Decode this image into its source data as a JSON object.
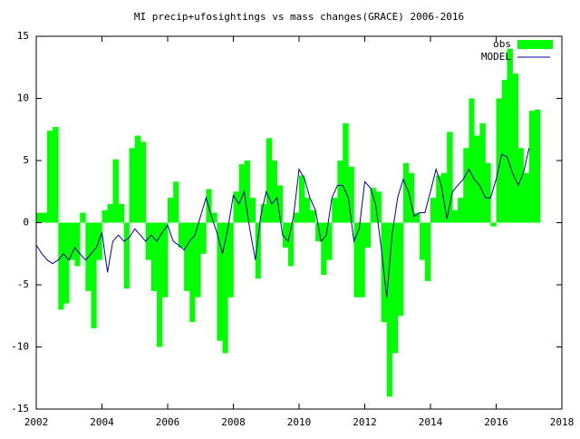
{
  "chart_data": {
    "type": "bar_line",
    "title": "MI precip+ufosightings vs mass changes(GRACE) 2006-2016",
    "x": [
      2002.0,
      2002.17,
      2002.33,
      2002.5,
      2002.67,
      2002.83,
      2003.0,
      2003.17,
      2003.33,
      2003.5,
      2003.67,
      2003.83,
      2004.0,
      2004.17,
      2004.33,
      2004.5,
      2004.67,
      2004.83,
      2005.0,
      2005.17,
      2005.33,
      2005.5,
      2005.67,
      2005.83,
      2006.0,
      2006.17,
      2006.33,
      2006.5,
      2006.67,
      2006.83,
      2007.0,
      2007.17,
      2007.33,
      2007.5,
      2007.67,
      2007.83,
      2008.0,
      2008.17,
      2008.33,
      2008.5,
      2008.67,
      2008.83,
      2009.0,
      2009.17,
      2009.33,
      2009.5,
      2009.67,
      2009.83,
      2010.0,
      2010.17,
      2010.33,
      2010.5,
      2010.67,
      2010.83,
      2011.0,
      2011.17,
      2011.33,
      2011.5,
      2011.67,
      2011.83,
      2012.0,
      2012.17,
      2012.33,
      2012.5,
      2012.67,
      2012.83,
      2013.0,
      2013.17,
      2013.33,
      2013.5,
      2013.67,
      2013.83,
      2014.0,
      2014.17,
      2014.33,
      2014.5,
      2014.67,
      2014.83,
      2015.0,
      2015.17,
      2015.33,
      2015.5,
      2015.67,
      2015.83,
      2016.0,
      2016.17,
      2016.33,
      2016.5,
      2016.67,
      2016.83,
      2017.0,
      2017.17
    ],
    "series": [
      {
        "name": "obs",
        "color": "#00ff00",
        "kind": "bar",
        "values": [
          0.8,
          0.8,
          7.4,
          7.7,
          -7,
          -6.5,
          -3,
          -3.5,
          0.8,
          -5.5,
          -8.5,
          -3,
          1,
          1.5,
          5.1,
          1.5,
          -5.3,
          6,
          7,
          6.5,
          -3,
          -5.5,
          -10,
          -6,
          2,
          3.3,
          -2,
          -5.5,
          -8,
          -6,
          -2.5,
          2.7,
          0.8,
          -9.5,
          -10.5,
          -6,
          2.5,
          4.7,
          5,
          2,
          -4.5,
          1.5,
          6.8,
          5,
          3,
          -2,
          -3.5,
          0.8,
          3.8,
          2,
          1,
          -1.5,
          -4.2,
          -3,
          2,
          5,
          8,
          4.5,
          -6,
          -6,
          -2,
          2.8,
          2.5,
          -8,
          -14,
          -10.5,
          -7.5,
          4.8,
          4,
          0.8,
          -3,
          -4.7,
          2,
          3.8,
          4,
          7.3,
          1,
          2,
          6,
          10,
          7,
          8,
          4.8,
          -0.3,
          10,
          11.5,
          14,
          12,
          6,
          4,
          9,
          9.1
        ]
      },
      {
        "name": "MODEL",
        "color": "#0000a0",
        "kind": "line",
        "values": [
          -1.8,
          -2.5,
          -3,
          -3.3,
          -3,
          -2.5,
          -3,
          -2,
          -2.5,
          -3,
          -2.5,
          -2,
          -0.8,
          -4,
          -1.5,
          -1,
          -1.5,
          -1.2,
          -0.5,
          -1,
          -1.5,
          -1,
          -1.5,
          -0.8,
          -0.2,
          -1.5,
          -1.8,
          -2.2,
          -1.5,
          -1,
          0.5,
          2,
          0.5,
          -0.8,
          -2.5,
          -0.5,
          2.2,
          1.5,
          2.5,
          -0.5,
          -3,
          0.5,
          2.5,
          1.5,
          2,
          -1,
          -1.5,
          0.5,
          4.3,
          3.5,
          2,
          1,
          -1.5,
          -1,
          2,
          3,
          3,
          2,
          -1.5,
          -0.5,
          3.3,
          2.8,
          1.5,
          -2,
          -6,
          -1,
          2,
          3.5,
          2.5,
          0.5,
          0.8,
          0.8,
          2.5,
          4.3,
          3,
          0.3,
          2.5,
          3,
          3.5,
          4.3,
          3.5,
          3,
          2,
          2,
          3.5,
          5.5,
          5.3,
          4,
          3,
          4,
          6,
          null
        ]
      }
    ],
    "xlim": [
      2002,
      2018
    ],
    "xticks": [
      2002,
      2004,
      2006,
      2008,
      2010,
      2012,
      2014,
      2016,
      2018
    ],
    "ylim": [
      -15,
      15
    ],
    "yticks": [
      -15,
      -10,
      -5,
      0,
      5,
      10,
      15
    ],
    "legend": "top-right"
  }
}
